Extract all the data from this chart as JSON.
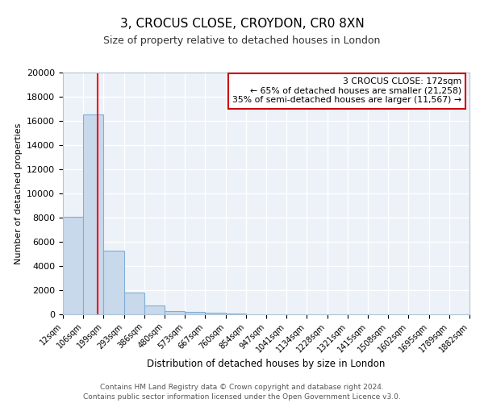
{
  "title1": "3, CROCUS CLOSE, CROYDON, CR0 8XN",
  "title2": "Size of property relative to detached houses in London",
  "xlabel": "Distribution of detached houses by size in London",
  "ylabel": "Number of detached properties",
  "bin_edges": [
    "12sqm",
    "106sqm",
    "199sqm",
    "293sqm",
    "386sqm",
    "480sqm",
    "573sqm",
    "667sqm",
    "760sqm",
    "854sqm",
    "947sqm",
    "1041sqm",
    "1134sqm",
    "1228sqm",
    "1321sqm",
    "1415sqm",
    "1508sqm",
    "1602sqm",
    "1695sqm",
    "1789sqm",
    "1882sqm"
  ],
  "bar_heights": [
    8100,
    16500,
    5300,
    1800,
    750,
    300,
    200,
    150,
    100,
    0,
    0,
    0,
    0,
    0,
    0,
    0,
    0,
    0,
    0,
    0
  ],
  "bar_color": "#c9d9ec",
  "bar_edgecolor": "#7fafd4",
  "bar_linewidth": 0.8,
  "vline_x": 1.72,
  "vline_color": "red",
  "vline_linewidth": 1.5,
  "ylim": [
    0,
    20000
  ],
  "yticks": [
    0,
    2000,
    4000,
    6000,
    8000,
    10000,
    12000,
    14000,
    16000,
    18000,
    20000
  ],
  "annotation_title": "3 CROCUS CLOSE: 172sqm",
  "annotation_line1": "← 65% of detached houses are smaller (21,258)",
  "annotation_line2": "35% of semi-detached houses are larger (11,567) →",
  "annotation_box_color": "#ffffff",
  "annotation_box_edgecolor": "#cc0000",
  "footer1": "Contains HM Land Registry data © Crown copyright and database right 2024.",
  "footer2": "Contains public sector information licensed under the Open Government Licence v3.0.",
  "background_color": "#edf2f8",
  "grid_color": "#ffffff",
  "fig_bg": "#ffffff"
}
